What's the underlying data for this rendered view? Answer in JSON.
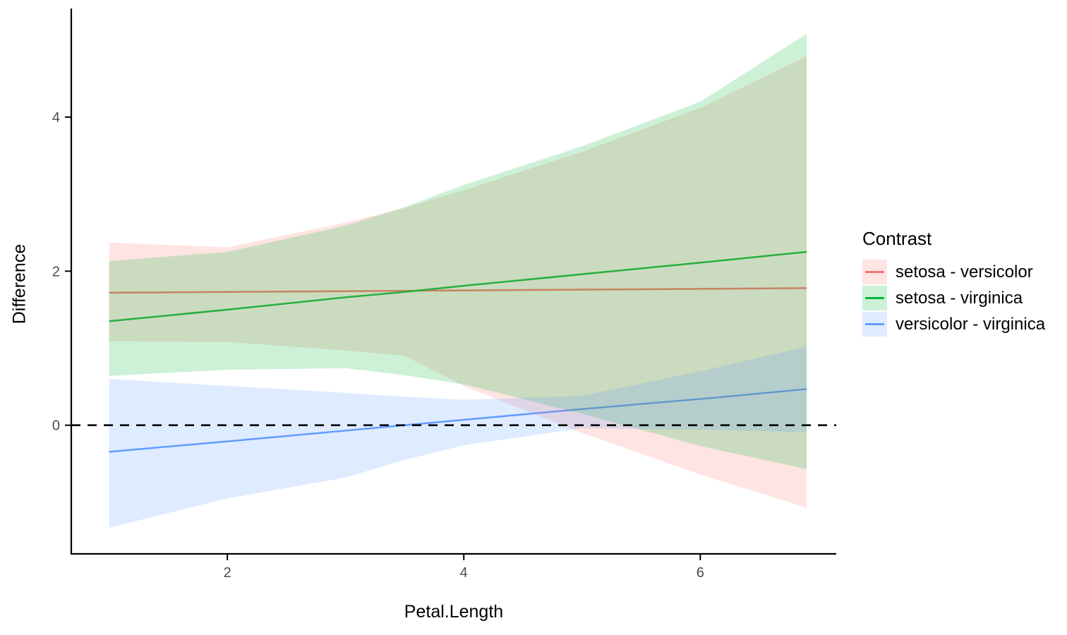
{
  "chart_data": {
    "type": "line",
    "title": "",
    "xlabel": "Petal.Length",
    "ylabel": "Difference",
    "legend_title": "Contrast",
    "legend_position": "right",
    "grid": false,
    "background": "#ffffff",
    "axis_color": "#000000",
    "tick_label_color": "#4d4d4d",
    "x_ticks": [
      2,
      4,
      6
    ],
    "y_ticks": [
      0,
      2,
      4
    ],
    "x_panel_range": [
      0.68,
      7.15
    ],
    "y_panel_range": [
      -1.67,
      5.41
    ],
    "reference_line": {
      "y": 0,
      "style": "dashed",
      "color": "#000000"
    },
    "ribbon_opacity": 0.2,
    "x": [
      1,
      2,
      3,
      3.5,
      4,
      5,
      6,
      6.9
    ],
    "series": [
      {
        "name": "setosa - versicolor",
        "color": "#F8766D",
        "line": [
          1.72,
          1.73,
          1.74,
          1.745,
          1.75,
          1.76,
          1.77,
          1.78
        ],
        "ci_upper": [
          2.37,
          2.31,
          2.63,
          2.82,
          3.05,
          3.55,
          4.12,
          4.79
        ],
        "ci_lower": [
          1.09,
          1.08,
          0.97,
          0.9,
          0.51,
          -0.1,
          -0.64,
          -1.07
        ]
      },
      {
        "name": "setosa - virginica",
        "color": "#00BA38",
        "line": [
          1.35,
          1.5,
          1.66,
          1.73,
          1.81,
          1.96,
          2.11,
          2.25
        ],
        "ci_upper": [
          2.13,
          2.25,
          2.59,
          2.83,
          3.12,
          3.62,
          4.2,
          5.08
        ],
        "ci_lower": [
          0.64,
          0.72,
          0.74,
          0.65,
          0.53,
          0.15,
          -0.27,
          -0.57
        ]
      },
      {
        "name": "versicolor - virginica",
        "color": "#619CFF",
        "line": [
          -0.345,
          -0.21,
          -0.07,
          0.0,
          0.07,
          0.21,
          0.34,
          0.47
        ],
        "ci_upper": [
          0.6,
          0.51,
          0.42,
          0.37,
          0.33,
          0.38,
          0.7,
          1.02
        ],
        "ci_lower": [
          -1.33,
          -0.95,
          -0.68,
          -0.45,
          -0.26,
          -0.04,
          -0.06,
          -0.09
        ]
      }
    ]
  }
}
